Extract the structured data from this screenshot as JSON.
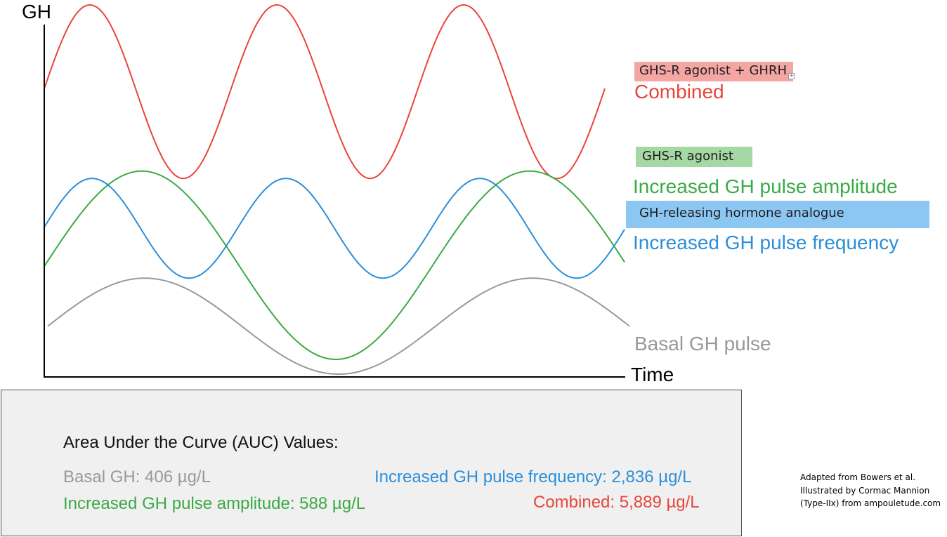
{
  "colors": {
    "combined": "#e8453c",
    "combined_box": "#f4a6a3",
    "agonist": "#3aaa45",
    "agonist_box": "#a4d9a4",
    "frequency": "#2b8fd9",
    "frequency_box": "#8cc6f3",
    "basal": "#999999",
    "axis": "#000000"
  },
  "chart_data": {
    "type": "line",
    "y_axis_label": "GH",
    "x_axis_label": "Time",
    "grid": false,
    "series": [
      {
        "key": "combined",
        "name": "Combined",
        "shape": "sine",
        "cycles": 3,
        "peak": 1.0,
        "trough": 0.53
      },
      {
        "key": "agonist",
        "name": "Increased GH pulse amplitude",
        "shape": "sine",
        "cycles": 1.5,
        "peak": 0.55,
        "trough": 0.04
      },
      {
        "key": "frequency",
        "name": "Increased GH pulse frequency",
        "shape": "sine",
        "cycles": 3,
        "peak": 0.53,
        "trough": 0.26
      },
      {
        "key": "basal",
        "name": "Basal GH pulse",
        "shape": "sine",
        "cycles": 1.5,
        "peak": 0.26,
        "trough": 0.0
      }
    ]
  },
  "labels": {
    "combined_tag": "GHS-R agonist + GHRH",
    "combined": "Combined",
    "agonist_tag": "GHS-R agonist",
    "amplitude": "Increased GH pulse amplitude",
    "ghrh_tag": "GH-releasing hormone analogue",
    "frequency": "Increased GH pulse frequency",
    "basal": "Basal GH pulse"
  },
  "auc": {
    "title": "Area Under the Curve (AUC) Values:",
    "basal": "Basal GH: 406 µg/L",
    "frequency": "Increased GH pulse frequency: 2,836 µg/L",
    "amplitude": "Increased GH pulse amplitude: 588 µg/L",
    "combined": "Combined: 5,889 µg/L"
  },
  "credits": {
    "line1": "Adapted from Bowers et al.",
    "line2": "Illustrated by Cormac Mannion",
    "line3": "(Type-IIx) from ampouletude.com"
  }
}
